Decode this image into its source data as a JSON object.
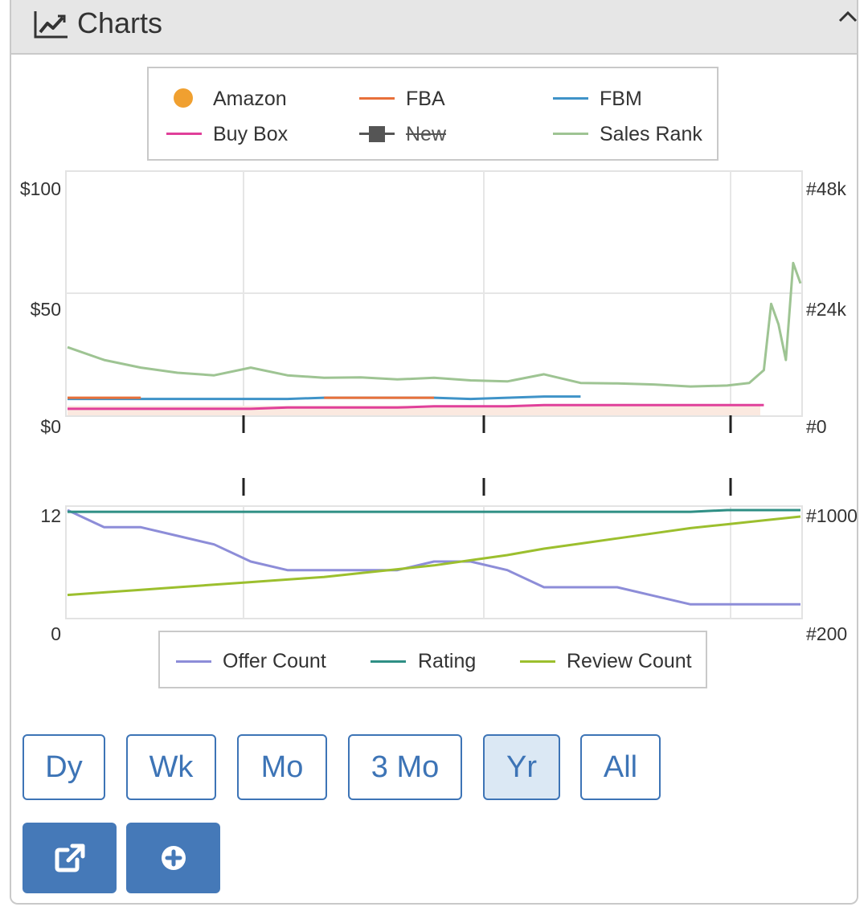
{
  "header": {
    "title": "Charts",
    "icon": "line-chart-icon",
    "collapse_icon": "chevron-up-icon"
  },
  "colors": {
    "amazon": "#f0a030",
    "fba": "#e8703a",
    "fbm": "#3f93c8",
    "buy_box": "#e0409a",
    "new": "#555555",
    "sales_rank": "#9ec493",
    "offer_count": "#8d8dd8",
    "rating": "#2f8f85",
    "review_count": "#9cbf2e",
    "accent": "#3d74b6"
  },
  "price_legend": {
    "items": [
      {
        "label": "Amazon",
        "marker": "dot",
        "color": "#f0a030",
        "struck": false
      },
      {
        "label": "FBA",
        "marker": "line",
        "color": "#e8703a",
        "struck": false
      },
      {
        "label": "FBM",
        "marker": "line",
        "color": "#3f93c8",
        "struck": false
      },
      {
        "label": "Buy Box",
        "marker": "line",
        "color": "#e0409a",
        "struck": false
      },
      {
        "label": "New",
        "marker": "square-line",
        "color": "#555555",
        "struck": true
      },
      {
        "label": "Sales Rank",
        "marker": "line",
        "color": "#9ec493",
        "struck": false
      }
    ]
  },
  "price_axes": {
    "left_ticks": [
      "$100",
      "$50",
      "$0"
    ],
    "right_ticks": [
      "#48k",
      "#24k",
      "#0"
    ]
  },
  "offer_axes": {
    "left_ticks": [
      "12",
      "0"
    ],
    "right_ticks": [
      "#1000",
      "#200"
    ]
  },
  "offer_legend": {
    "items": [
      {
        "label": "Offer Count",
        "color": "#8d8dd8"
      },
      {
        "label": "Rating",
        "color": "#2f8f85"
      },
      {
        "label": "Review Count",
        "color": "#9cbf2e"
      }
    ]
  },
  "chart_data": [
    {
      "type": "line",
      "title": "",
      "ylim_left": [
        0,
        100
      ],
      "ylim_right": [
        0,
        48000
      ],
      "y_tick_labels_left": [
        "$100",
        "$50",
        "$0"
      ],
      "y_tick_labels_right": [
        "#48k",
        "#24k",
        "#0"
      ],
      "x": [
        0,
        0.05,
        0.1,
        0.15,
        0.2,
        0.25,
        0.3,
        0.35,
        0.4,
        0.45,
        0.5,
        0.55,
        0.6,
        0.65,
        0.7,
        0.75,
        0.8,
        0.85,
        0.9,
        0.93,
        0.95,
        0.96,
        0.97,
        0.98,
        0.99,
        1.0
      ],
      "series": [
        {
          "name": "Sales Rank",
          "axis": "right",
          "values": [
            13500,
            11000,
            9500,
            8500,
            8000,
            9500,
            8000,
            7500,
            7600,
            7200,
            7500,
            7000,
            6800,
            8200,
            6500,
            6400,
            6200,
            5800,
            6000,
            6500,
            9000,
            22000,
            18000,
            11000,
            30000,
            26000
          ]
        },
        {
          "name": "FBM",
          "axis": "left",
          "values": [
            7,
            7,
            7,
            7,
            7,
            7,
            7,
            7.5,
            7.5,
            7.5,
            7.5,
            7,
            7.5,
            8,
            8,
            null,
            null,
            null,
            null,
            null,
            null,
            null,
            null,
            null,
            null,
            null
          ]
        },
        {
          "name": "FBA",
          "axis": "left",
          "values": [
            7.5,
            7.5,
            7.5,
            null,
            null,
            null,
            null,
            7.5,
            7.5,
            7.5,
            7.5,
            null,
            null,
            null,
            null,
            null,
            null,
            null,
            null,
            null,
            null,
            null,
            null,
            null,
            null,
            null
          ]
        },
        {
          "name": "Buy Box",
          "axis": "left",
          "values": [
            3,
            3,
            3,
            3,
            3,
            3,
            3.5,
            3.5,
            3.5,
            3.5,
            4,
            4,
            4,
            4.5,
            4.5,
            4.5,
            4.5,
            4.5,
            4.5,
            4.5,
            4.5,
            null,
            null,
            null,
            null,
            null
          ]
        }
      ]
    },
    {
      "type": "line",
      "title": "",
      "ylim_left": [
        0,
        12
      ],
      "ylim_right": [
        200,
        1000
      ],
      "y_tick_labels_left": [
        "12",
        "0"
      ],
      "y_tick_labels_right": [
        "#1000",
        "#200"
      ],
      "x": [
        0,
        0.05,
        0.1,
        0.15,
        0.2,
        0.25,
        0.3,
        0.35,
        0.4,
        0.45,
        0.5,
        0.55,
        0.6,
        0.65,
        0.7,
        0.75,
        0.8,
        0.85,
        0.9,
        0.95,
        1.0
      ],
      "series": [
        {
          "name": "Offer Count",
          "axis": "left",
          "values": [
            12,
            10,
            10,
            9,
            8,
            6,
            5,
            5,
            5,
            5,
            6,
            6,
            5,
            3,
            3,
            3,
            2,
            1,
            1,
            1,
            1
          ]
        },
        {
          "name": "Rating",
          "axis": "left",
          "values": [
            11.8,
            11.8,
            11.8,
            11.8,
            11.8,
            11.8,
            11.8,
            11.8,
            11.8,
            11.8,
            11.8,
            11.8,
            11.8,
            11.8,
            11.8,
            11.8,
            11.8,
            11.8,
            12,
            12,
            12
          ]
        },
        {
          "name": "Review Count",
          "axis": "right",
          "values": [
            340,
            360,
            380,
            400,
            420,
            440,
            460,
            480,
            510,
            540,
            570,
            610,
            650,
            700,
            740,
            780,
            820,
            860,
            890,
            920,
            950
          ]
        }
      ]
    }
  ],
  "ranges": {
    "buttons": [
      {
        "label": "Dy",
        "active": false
      },
      {
        "label": "Wk",
        "active": false
      },
      {
        "label": "Mo",
        "active": false
      },
      {
        "label": "3 Mo",
        "active": false
      },
      {
        "label": "Yr",
        "active": true
      },
      {
        "label": "All",
        "active": false
      }
    ]
  },
  "actions": {
    "open_icon": "external-link-icon",
    "add_icon": "plus-circle-icon"
  }
}
